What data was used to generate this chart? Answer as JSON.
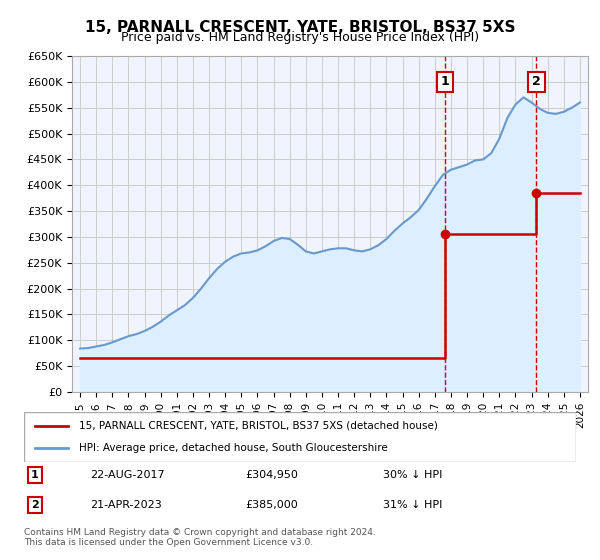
{
  "title": "15, PARNALL CRESCENT, YATE, BRISTOL, BS37 5XS",
  "subtitle": "Price paid vs. HM Land Registry's House Price Index (HPI)",
  "legend_line1": "15, PARNALL CRESCENT, YATE, BRISTOL, BS37 5XS (detached house)",
  "legend_line2": "HPI: Average price, detached house, South Gloucestershire",
  "footnote": "Contains HM Land Registry data © Crown copyright and database right 2024.\nThis data is licensed under the Open Government Licence v3.0.",
  "sale1_label": "1",
  "sale1_date": "22-AUG-2017",
  "sale1_price": "£304,950",
  "sale1_note": "30% ↓ HPI",
  "sale1_year": 2017.64,
  "sale1_value": 304950,
  "sale2_label": "2",
  "sale2_date": "21-APR-2023",
  "sale2_price": "£385,000",
  "sale2_note": "31% ↓ HPI",
  "sale2_year": 2023.3,
  "sale2_value": 385000,
  "hpi_color": "#6699cc",
  "price_color": "#cc0000",
  "bg_color": "#ddeeff",
  "grid_color": "#cccccc",
  "plot_bg": "#f0f4ff",
  "ylim": [
    0,
    650000
  ],
  "xlim": [
    1994.5,
    2026.5
  ],
  "hpi_data": {
    "years": [
      1995.0,
      1995.5,
      1996.0,
      1996.5,
      1997.0,
      1997.5,
      1998.0,
      1998.5,
      1999.0,
      1999.5,
      2000.0,
      2000.5,
      2001.0,
      2001.5,
      2002.0,
      2002.5,
      2003.0,
      2003.5,
      2004.0,
      2004.5,
      2005.0,
      2005.5,
      2006.0,
      2006.5,
      2007.0,
      2007.5,
      2008.0,
      2008.5,
      2009.0,
      2009.5,
      2010.0,
      2010.5,
      2011.0,
      2011.5,
      2012.0,
      2012.5,
      2013.0,
      2013.5,
      2014.0,
      2014.5,
      2015.0,
      2015.5,
      2016.0,
      2016.5,
      2017.0,
      2017.5,
      2018.0,
      2018.5,
      2019.0,
      2019.5,
      2020.0,
      2020.5,
      2021.0,
      2021.5,
      2022.0,
      2022.5,
      2023.0,
      2023.5,
      2024.0,
      2024.5,
      2025.0,
      2025.5,
      2026.0
    ],
    "values": [
      84000,
      85000,
      88000,
      91000,
      96000,
      102000,
      108000,
      112000,
      118000,
      126000,
      136000,
      148000,
      158000,
      168000,
      182000,
      200000,
      220000,
      238000,
      252000,
      262000,
      268000,
      270000,
      274000,
      282000,
      292000,
      298000,
      296000,
      285000,
      272000,
      268000,
      272000,
      276000,
      278000,
      278000,
      274000,
      272000,
      276000,
      284000,
      296000,
      312000,
      326000,
      338000,
      352000,
      374000,
      398000,
      420000,
      430000,
      435000,
      440000,
      448000,
      450000,
      462000,
      490000,
      530000,
      556000,
      570000,
      560000,
      548000,
      540000,
      538000,
      542000,
      550000,
      560000
    ]
  },
  "price_data": {
    "years": [
      1995.0,
      2017.64,
      2017.64,
      2023.3,
      2023.3,
      2026.0
    ],
    "values": [
      65000,
      65000,
      304950,
      304950,
      385000,
      385000
    ]
  },
  "xticks": [
    1995,
    1996,
    1997,
    1998,
    1999,
    2000,
    2001,
    2002,
    2003,
    2004,
    2005,
    2006,
    2007,
    2008,
    2009,
    2010,
    2011,
    2012,
    2013,
    2014,
    2015,
    2016,
    2017,
    2018,
    2019,
    2020,
    2021,
    2022,
    2023,
    2024,
    2025,
    2026
  ]
}
